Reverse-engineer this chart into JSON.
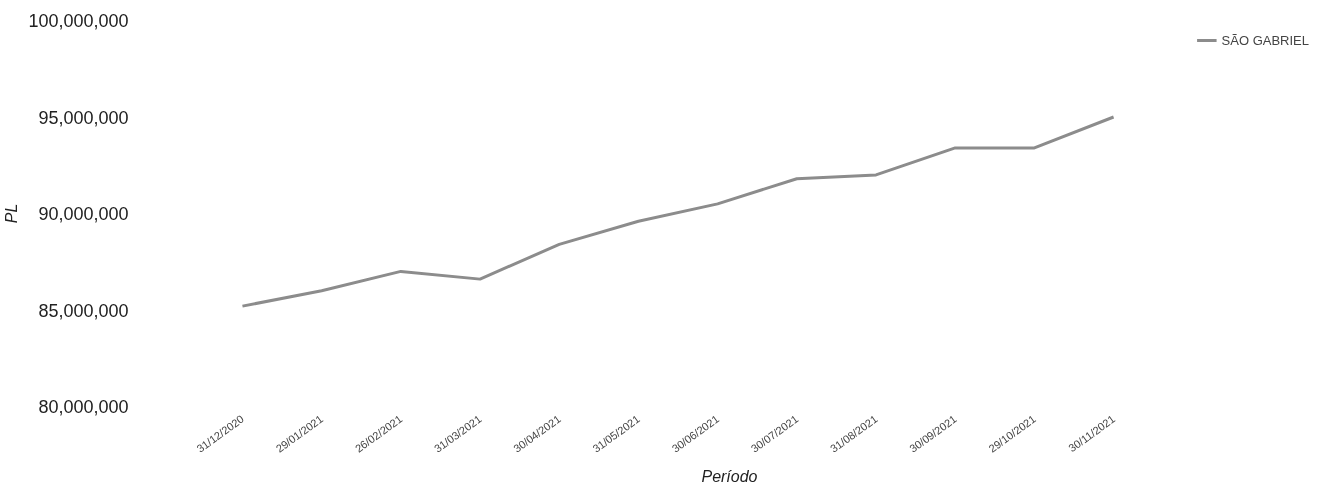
{
  "chart_data": {
    "type": "line",
    "xlabel": "Período",
    "ylabel": "PL",
    "categories": [
      "31/12/2020",
      "29/01/2021",
      "26/02/2021",
      "31/03/2021",
      "30/04/2021",
      "31/05/2021",
      "30/06/2021",
      "30/07/2021",
      "31/08/2021",
      "30/09/2021",
      "29/10/2021",
      "30/11/2021"
    ],
    "series": [
      {
        "name": "SÃO GABRIEL",
        "color": "#8c8c8c",
        "values": [
          85200000,
          86000000,
          87000000,
          86600000,
          88400000,
          89600000,
          90500000,
          91800000,
          92000000,
          93400000,
          93400000,
          95000000
        ]
      }
    ],
    "ylim": [
      80000000,
      100000000
    ],
    "yticks": [
      {
        "value": 80000000,
        "label": "80,000,000"
      },
      {
        "value": 85000000,
        "label": "85,000,000"
      },
      {
        "value": 90000000,
        "label": "90,000,000"
      },
      {
        "value": 95000000,
        "label": "95,000,000"
      },
      {
        "value": 100000000,
        "label": "100,000,000"
      }
    ],
    "grid": false,
    "legend": "top right"
  }
}
